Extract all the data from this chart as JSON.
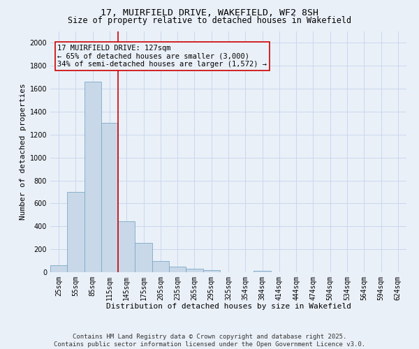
{
  "title_line1": "17, MUIRFIELD DRIVE, WAKEFIELD, WF2 8SH",
  "title_line2": "Size of property relative to detached houses in Wakefield",
  "xlabel": "Distribution of detached houses by size in Wakefield",
  "ylabel": "Number of detached properties",
  "categories": [
    "25sqm",
    "55sqm",
    "85sqm",
    "115sqm",
    "145sqm",
    "175sqm",
    "205sqm",
    "235sqm",
    "265sqm",
    "295sqm",
    "325sqm",
    "354sqm",
    "384sqm",
    "414sqm",
    "444sqm",
    "474sqm",
    "504sqm",
    "534sqm",
    "564sqm",
    "594sqm",
    "624sqm"
  ],
  "values": [
    60,
    700,
    1660,
    1300,
    445,
    255,
    95,
    50,
    30,
    20,
    0,
    0,
    15,
    0,
    0,
    0,
    0,
    0,
    0,
    0,
    0
  ],
  "bar_color": "#c8d8e8",
  "bar_edge_color": "#7aaac8",
  "bar_width": 1.0,
  "property_line_color": "#cc0000",
  "annotation_text": "17 MUIRFIELD DRIVE: 127sqm\n← 65% of detached houses are smaller (3,000)\n34% of semi-detached houses are larger (1,572) →",
  "annotation_box_color": "#cc0000",
  "ylim": [
    0,
    2100
  ],
  "yticks": [
    0,
    200,
    400,
    600,
    800,
    1000,
    1200,
    1400,
    1600,
    1800,
    2000
  ],
  "grid_color": "#c8d8ee",
  "background_color": "#eaf0f8",
  "footer_line1": "Contains HM Land Registry data © Crown copyright and database right 2025.",
  "footer_line2": "Contains public sector information licensed under the Open Government Licence v3.0.",
  "title_fontsize": 9.5,
  "subtitle_fontsize": 8.5,
  "axis_label_fontsize": 8,
  "tick_fontsize": 7,
  "annotation_fontsize": 7.5,
  "footer_fontsize": 6.5
}
